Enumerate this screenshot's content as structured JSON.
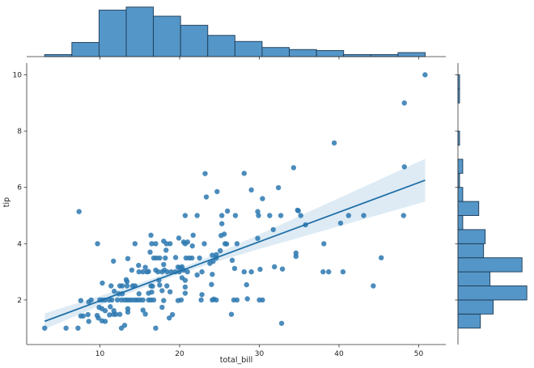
{
  "chart_data": {
    "type": "scatter",
    "kind": "jointplot with regression",
    "xlabel": "total_bill",
    "ylabel": "tip",
    "xlim": [
      0.8,
      53.5
    ],
    "ylim": [
      0.6,
      10.4
    ],
    "xticks": [
      10,
      20,
      30,
      40,
      50
    ],
    "yticks": [
      2,
      4,
      6,
      8,
      10
    ],
    "grid": false,
    "colors": {
      "points": "#2b78b0",
      "line": "#1f6fa8",
      "band": "#1f77b4",
      "hist_fill": "#5596c8",
      "hist_edge": "#1b3a55",
      "axis": "#333333"
    },
    "regression": {
      "intercept": 0.92,
      "slope": 0.105,
      "x_range": [
        3.07,
        50.81
      ],
      "band": [
        [
          3.07,
          0.28
        ],
        [
          10,
          0.17
        ],
        [
          15,
          0.11
        ],
        [
          20,
          0.09
        ],
        [
          25,
          0.15
        ],
        [
          30,
          0.26
        ],
        [
          35,
          0.38
        ],
        [
          40,
          0.5
        ],
        [
          45,
          0.62
        ],
        [
          50.81,
          0.76
        ]
      ]
    },
    "points": [
      [
        50.8,
        10.0
      ],
      [
        48.2,
        9.0
      ],
      [
        39.4,
        7.58
      ],
      [
        34.3,
        6.7
      ],
      [
        48.2,
        6.73
      ],
      [
        28.1,
        6.5
      ],
      [
        29.0,
        5.91
      ],
      [
        32.4,
        5.99
      ],
      [
        30.4,
        5.6
      ],
      [
        26.0,
        5.16
      ],
      [
        27.0,
        5.0
      ],
      [
        29.8,
        5.14
      ],
      [
        29.9,
        5.0
      ],
      [
        31.3,
        5.0
      ],
      [
        32.7,
        5.0
      ],
      [
        34.8,
        5.19
      ],
      [
        34.9,
        5.17
      ],
      [
        35.2,
        5.0
      ],
      [
        35.8,
        4.67
      ],
      [
        40.2,
        4.73
      ],
      [
        41.2,
        5.0
      ],
      [
        43.1,
        5.0
      ],
      [
        48.1,
        5.0
      ],
      [
        31.75,
        4.5
      ],
      [
        29.8,
        4.19
      ],
      [
        25.9,
        3.99
      ],
      [
        27.2,
        4.0
      ],
      [
        38.1,
        4.0
      ],
      [
        26.6,
        3.41
      ],
      [
        26.9,
        3.12
      ],
      [
        28.1,
        3.0
      ],
      [
        29.0,
        3.0
      ],
      [
        30.1,
        3.09
      ],
      [
        31.9,
        3.18
      ],
      [
        32.9,
        3.1
      ],
      [
        34.6,
        3.67
      ],
      [
        34.6,
        3.55
      ],
      [
        38.0,
        3.0
      ],
      [
        38.7,
        3.0
      ],
      [
        40.5,
        3.0
      ],
      [
        45.3,
        3.5
      ],
      [
        44.3,
        2.5
      ],
      [
        28.4,
        2.54
      ],
      [
        27.2,
        2.0
      ],
      [
        28.5,
        2.04
      ],
      [
        30.0,
        2.0
      ],
      [
        30.4,
        2.0
      ],
      [
        26.5,
        1.49
      ],
      [
        32.8,
        1.17
      ],
      [
        23.2,
        6.49
      ],
      [
        23.35,
        5.66
      ],
      [
        24.7,
        5.85
      ],
      [
        7.38,
        5.14
      ],
      [
        25.3,
        5.0
      ],
      [
        20.7,
        5.0
      ],
      [
        22.2,
        5.0
      ],
      [
        25.3,
        4.71
      ],
      [
        25.2,
        4.29
      ],
      [
        25.6,
        4.34
      ],
      [
        16.4,
        4.3
      ],
      [
        21.7,
        4.3
      ],
      [
        19.9,
        4.2
      ],
      [
        18.0,
        4.09
      ],
      [
        18.8,
        4.0
      ],
      [
        18.35,
        4.0
      ],
      [
        16.5,
        4.0
      ],
      [
        17.0,
        4.0
      ],
      [
        20.5,
        4.06
      ],
      [
        21.0,
        4.06
      ],
      [
        20.7,
        4.0
      ],
      [
        23.1,
        4.0
      ],
      [
        25.7,
        4.0
      ],
      [
        9.7,
        4.0
      ],
      [
        14.4,
        4.0
      ],
      [
        21.6,
        3.92
      ],
      [
        18.3,
        3.77
      ],
      [
        16.3,
        3.7
      ],
      [
        25.1,
        3.75
      ],
      [
        16.75,
        3.49
      ],
      [
        17.1,
        3.49
      ],
      [
        17.5,
        3.49
      ],
      [
        18.2,
        3.49
      ],
      [
        19.5,
        3.51
      ],
      [
        20.8,
        3.49
      ],
      [
        21.2,
        3.49
      ],
      [
        21.55,
        3.49
      ],
      [
        22.5,
        3.49
      ],
      [
        24.1,
        3.59
      ],
      [
        24.6,
        3.61
      ],
      [
        24.6,
        3.49
      ],
      [
        11.7,
        3.38
      ],
      [
        13.5,
        3.47
      ],
      [
        14.85,
        3.23
      ],
      [
        18.0,
        3.26
      ],
      [
        15.7,
        3.16
      ],
      [
        16.1,
        3.01
      ],
      [
        14.0,
        3.06
      ],
      [
        14.9,
        3.0
      ],
      [
        15.4,
        3.0
      ],
      [
        15.9,
        3.0
      ],
      [
        17.0,
        3.06
      ],
      [
        17.3,
        3.0
      ],
      [
        17.8,
        3.0
      ],
      [
        18.1,
        3.06
      ],
      [
        18.45,
        3.0
      ],
      [
        18.95,
        3.0
      ],
      [
        19.45,
        3.0
      ],
      [
        19.96,
        3.0
      ],
      [
        20.5,
        3.06
      ],
      [
        20.98,
        3.0
      ],
      [
        19.8,
        3.17
      ],
      [
        20.07,
        3.15
      ],
      [
        20.3,
        3.18
      ],
      [
        22.2,
        2.89
      ],
      [
        22.8,
        3.0
      ],
      [
        23.8,
        3.3
      ],
      [
        24.2,
        3.37
      ],
      [
        20.3,
        2.79
      ],
      [
        20.7,
        2.7
      ],
      [
        24.1,
        2.91
      ],
      [
        13.3,
        2.72
      ],
      [
        13.4,
        2.65
      ],
      [
        10.3,
        2.6
      ],
      [
        11.4,
        2.5
      ],
      [
        12.5,
        2.5
      ],
      [
        12.8,
        2.5
      ],
      [
        13.4,
        2.5
      ],
      [
        14.1,
        2.5
      ],
      [
        14.4,
        2.5
      ],
      [
        16.4,
        2.5
      ],
      [
        16.6,
        2.49
      ],
      [
        17.4,
        2.7
      ],
      [
        17.5,
        2.53
      ],
      [
        18.4,
        2.5
      ],
      [
        17.8,
        2.33
      ],
      [
        18.8,
        2.29
      ],
      [
        20.7,
        2.46
      ],
      [
        20.7,
        2.24
      ],
      [
        24.0,
        2.55
      ],
      [
        11.8,
        2.31
      ],
      [
        12.35,
        2.22
      ],
      [
        12.8,
        2.22
      ],
      [
        14.9,
        2.22
      ],
      [
        16.1,
        2.24
      ],
      [
        16.5,
        2.28
      ],
      [
        22.8,
        2.19
      ],
      [
        7.6,
        1.98
      ],
      [
        8.6,
        1.93
      ],
      [
        8.9,
        2.0
      ],
      [
        9.98,
        2.0
      ],
      [
        10.3,
        2.0
      ],
      [
        10.66,
        2.0
      ],
      [
        11.17,
        2.0
      ],
      [
        11.5,
        2.0
      ],
      [
        12.2,
        2.0
      ],
      [
        12.7,
        2.0
      ],
      [
        13.1,
        2.0
      ],
      [
        13.4,
        2.0
      ],
      [
        13.7,
        2.0
      ],
      [
        14.04,
        2.0
      ],
      [
        14.4,
        2.0
      ],
      [
        14.7,
        2.0
      ],
      [
        15.05,
        2.0
      ],
      [
        15.4,
        2.0
      ],
      [
        16.1,
        2.0
      ],
      [
        16.4,
        2.0
      ],
      [
        16.75,
        2.0
      ],
      [
        18.0,
        1.98
      ],
      [
        19.8,
        1.98
      ],
      [
        20.2,
        2.0
      ],
      [
        22.7,
        2.0
      ],
      [
        24.1,
        2.0
      ],
      [
        24.3,
        2.03
      ],
      [
        24.6,
        2.0
      ],
      [
        26.8,
        2.0
      ],
      [
        9.9,
        1.74
      ],
      [
        10.25,
        1.69
      ],
      [
        10.66,
        1.62
      ],
      [
        9.65,
        1.45
      ],
      [
        9.8,
        1.36
      ],
      [
        10.25,
        1.26
      ],
      [
        10.66,
        1.24
      ],
      [
        7.6,
        1.43
      ],
      [
        7.9,
        1.43
      ],
      [
        8.5,
        1.48
      ],
      [
        8.6,
        1.24
      ],
      [
        11.2,
        1.47
      ],
      [
        11.7,
        1.49
      ],
      [
        12.0,
        1.49
      ],
      [
        12.5,
        1.49
      ],
      [
        11.75,
        1.62
      ],
      [
        11.3,
        1.76
      ],
      [
        13.5,
        1.69
      ],
      [
        13.5,
        1.57
      ],
      [
        15.4,
        1.64
      ],
      [
        15.7,
        1.5
      ],
      [
        17.8,
        1.74
      ],
      [
        18.7,
        1.36
      ],
      [
        19.1,
        1.48
      ],
      [
        12.7,
        1.0
      ],
      [
        13.1,
        1.1
      ],
      [
        17.0,
        1.0
      ],
      [
        3.07,
        1.0
      ],
      [
        5.75,
        1.0
      ],
      [
        7.25,
        1.0
      ]
    ],
    "x_hist": {
      "bin_start": 3.07,
      "bin_width": 3.41,
      "counts": [
        2,
        14,
        46,
        49,
        40,
        31,
        21,
        15,
        9,
        7,
        6,
        2,
        2,
        4
      ]
    },
    "y_hist": {
      "bin_start": 1.0,
      "bin_width": 0.5,
      "counts": [
        14,
        22,
        43,
        20,
        40,
        16,
        17,
        3,
        13,
        3,
        1,
        3,
        0,
        1,
        0,
        0,
        1,
        1
      ]
    }
  }
}
